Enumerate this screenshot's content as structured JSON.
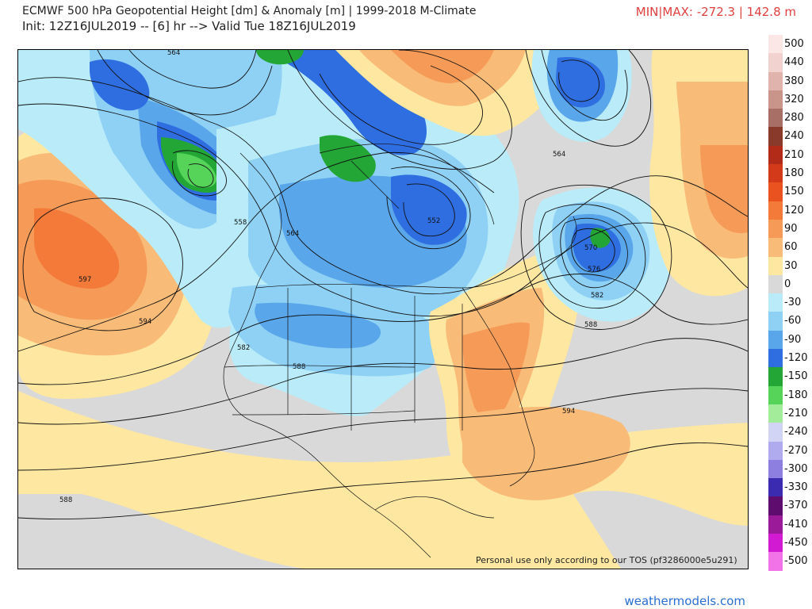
{
  "header": {
    "title": "ECMWF 500 hPa Geopotential Height [dm] & Anomaly [m] | 1999-2018 M-Climate",
    "init": "Init: 12Z16JUL2019 -- [6] hr --> Valid Tue 18Z16JUL2019",
    "minmax": "MIN|MAX: -272.3 | 142.8 m"
  },
  "legend": {
    "items": [
      {
        "label": "500",
        "color": "#fbe8e6"
      },
      {
        "label": "440",
        "color": "#f2d2cf"
      },
      {
        "label": "380",
        "color": "#e0b3ac"
      },
      {
        "label": "320",
        "color": "#c9948a"
      },
      {
        "label": "280",
        "color": "#a86f66"
      },
      {
        "label": "240",
        "color": "#8a3a2a"
      },
      {
        "label": "210",
        "color": "#b12b18"
      },
      {
        "label": "180",
        "color": "#d23a1a"
      },
      {
        "label": "150",
        "color": "#ea5320"
      },
      {
        "label": "120",
        "color": "#f47a3a"
      },
      {
        "label": "90",
        "color": "#f69a57"
      },
      {
        "label": "60",
        "color": "#f9bb78"
      },
      {
        "label": "30",
        "color": "#fde7a1"
      },
      {
        "label": "0",
        "color": "#d9d9d9"
      },
      {
        "label": "-30",
        "color": "#b9ecf8"
      },
      {
        "label": "-60",
        "color": "#8fd1f5"
      },
      {
        "label": "-90",
        "color": "#5aa6ea"
      },
      {
        "label": "-120",
        "color": "#2f6ee0"
      },
      {
        "label": "-150",
        "color": "#23a635"
      },
      {
        "label": "-180",
        "color": "#56d45a"
      },
      {
        "label": "-210",
        "color": "#a2ec9a"
      },
      {
        "label": "-240",
        "color": "#d2d4f6"
      },
      {
        "label": "-270",
        "color": "#b0abee"
      },
      {
        "label": "-300",
        "color": "#8c7fe0"
      },
      {
        "label": "-330",
        "color": "#3b2bb0"
      },
      {
        "label": "-370",
        "color": "#5e0d6e"
      },
      {
        "label": "-410",
        "color": "#9a1a9a"
      },
      {
        "label": "-450",
        "color": "#d21ad2"
      },
      {
        "label": "-500",
        "color": "#f272e8"
      }
    ]
  },
  "map": {
    "contour_labels": [
      "564",
      "558",
      "564",
      "597",
      "594",
      "582",
      "588",
      "552",
      "564",
      "570",
      "576",
      "582",
      "588",
      "594",
      "588"
    ]
  },
  "footer": {
    "note": "Personal use only according to our TOS (pf3286000e5u291)",
    "credit": "weathermodels.com"
  }
}
